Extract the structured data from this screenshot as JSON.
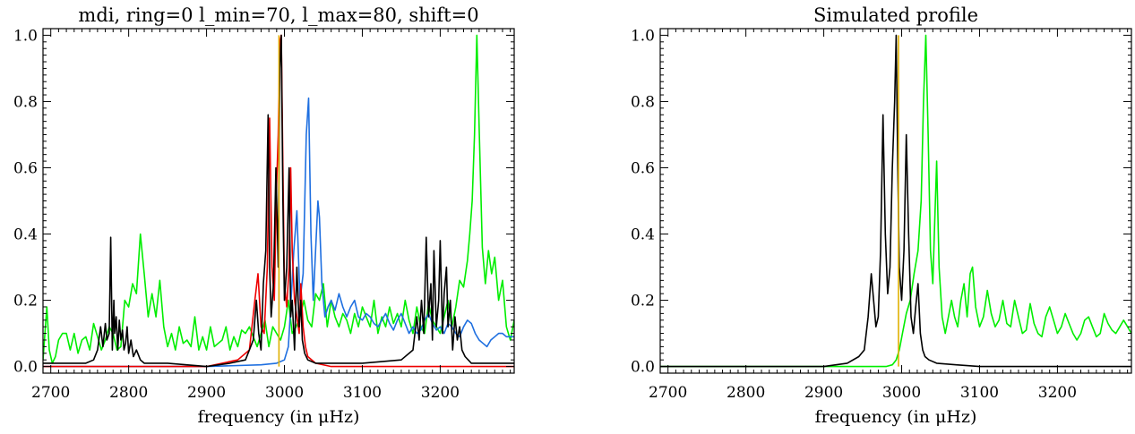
{
  "chart_data": [
    {
      "type": "line",
      "title": "mdi, ring=0 l_min=70, l_max=80, shift=0",
      "xlabel": "frequency (in μHz)",
      "ylabel": "",
      "xlim": [
        2690,
        3295
      ],
      "ylim": [
        -0.02,
        1.02
      ],
      "grid": false,
      "x_ticks": [
        2700,
        2800,
        2900,
        3000,
        3100,
        3200
      ],
      "x_tick_labels": [
        "2700",
        "2800",
        "2900",
        "3000",
        "3100",
        "3200"
      ],
      "y_ticks": [
        0.0,
        0.2,
        0.4,
        0.6,
        0.8,
        1.0
      ],
      "y_tick_labels": [
        "0.0",
        "0.2",
        "0.4",
        "0.6",
        "0.8",
        "1.0"
      ],
      "series": [
        {
          "color": "#00ee00",
          "x": [
            2690,
            2695,
            2698,
            2702,
            2706,
            2710,
            2715,
            2720,
            2725,
            2730,
            2735,
            2740,
            2745,
            2750,
            2755,
            2760,
            2765,
            2770,
            2775,
            2780,
            2785,
            2790,
            2795,
            2800,
            2805,
            2810,
            2815,
            2820,
            2825,
            2830,
            2835,
            2840,
            2845,
            2850,
            2855,
            2860,
            2865,
            2870,
            2875,
            2880,
            2885,
            2890,
            2895,
            2900,
            2905,
            2910,
            2915,
            2920,
            2925,
            2930,
            2935,
            2940,
            2945,
            2950,
            2955,
            2960,
            2965,
            2970,
            2975,
            2980,
            2985,
            2990,
            2995,
            3000,
            3005,
            3010,
            3015,
            3020,
            3025,
            3030,
            3035,
            3040,
            3045,
            3050,
            3055,
            3060,
            3065,
            3070,
            3075,
            3080,
            3085,
            3090,
            3095,
            3100,
            3105,
            3110,
            3115,
            3120,
            3125,
            3130,
            3135,
            3140,
            3145,
            3150,
            3155,
            3160,
            3165,
            3170,
            3175,
            3180,
            3185,
            3190,
            3195,
            3200,
            3205,
            3210,
            3215,
            3220,
            3225,
            3230,
            3235,
            3238,
            3241,
            3244,
            3247,
            3250,
            3254,
            3258,
            3262,
            3266,
            3270,
            3275,
            3280,
            3285,
            3290,
            3295
          ],
          "y": [
            0.02,
            0.18,
            0.05,
            0.01,
            0.03,
            0.08,
            0.1,
            0.1,
            0.05,
            0.1,
            0.04,
            0.08,
            0.09,
            0.05,
            0.13,
            0.09,
            0.05,
            0.08,
            0.12,
            0.1,
            0.05,
            0.06,
            0.2,
            0.18,
            0.25,
            0.22,
            0.4,
            0.28,
            0.15,
            0.22,
            0.15,
            0.26,
            0.12,
            0.06,
            0.1,
            0.05,
            0.12,
            0.07,
            0.08,
            0.06,
            0.15,
            0.05,
            0.09,
            0.05,
            0.12,
            0.06,
            0.07,
            0.08,
            0.12,
            0.05,
            0.09,
            0.06,
            0.11,
            0.1,
            0.12,
            0.09,
            0.06,
            0.1,
            0.14,
            0.06,
            0.12,
            0.1,
            0.08,
            0.12,
            0.2,
            0.1,
            0.12,
            0.15,
            0.2,
            0.14,
            0.12,
            0.22,
            0.2,
            0.25,
            0.12,
            0.2,
            0.15,
            0.12,
            0.16,
            0.14,
            0.1,
            0.16,
            0.12,
            0.18,
            0.15,
            0.12,
            0.2,
            0.1,
            0.15,
            0.12,
            0.18,
            0.13,
            0.16,
            0.12,
            0.2,
            0.14,
            0.1,
            0.18,
            0.12,
            0.1,
            0.19,
            0.14,
            0.12,
            0.1,
            0.15,
            0.2,
            0.12,
            0.18,
            0.26,
            0.24,
            0.32,
            0.4,
            0.5,
            0.7,
            1.0,
            0.72,
            0.36,
            0.25,
            0.35,
            0.28,
            0.33,
            0.2,
            0.26,
            0.12,
            0.08,
            0.14
          ]
        },
        {
          "color": "#1e6fe0",
          "x": [
            2690,
            2900,
            2970,
            2990,
            3000,
            3005,
            3008,
            3012,
            3016,
            3020,
            3024,
            3028,
            3031,
            3034,
            3037,
            3040,
            3043,
            3045,
            3048,
            3052,
            3056,
            3060,
            3065,
            3070,
            3075,
            3080,
            3085,
            3090,
            3095,
            3100,
            3105,
            3110,
            3115,
            3120,
            3125,
            3130,
            3135,
            3140,
            3145,
            3150,
            3155,
            3160,
            3165,
            3170,
            3175,
            3180,
            3185,
            3190,
            3195,
            3200,
            3205,
            3210,
            3215,
            3220,
            3225,
            3230,
            3235,
            3240,
            3245,
            3250,
            3255,
            3260,
            3265,
            3270,
            3275,
            3280,
            3285,
            3290,
            3295
          ],
          "y": [
            0.0,
            0.0,
            0.005,
            0.01,
            0.02,
            0.06,
            0.18,
            0.35,
            0.47,
            0.2,
            0.28,
            0.7,
            0.81,
            0.4,
            0.2,
            0.35,
            0.5,
            0.45,
            0.25,
            0.15,
            0.18,
            0.2,
            0.17,
            0.22,
            0.18,
            0.15,
            0.18,
            0.2,
            0.15,
            0.14,
            0.16,
            0.15,
            0.13,
            0.12,
            0.14,
            0.16,
            0.13,
            0.11,
            0.14,
            0.16,
            0.13,
            0.1,
            0.12,
            0.1,
            0.11,
            0.14,
            0.16,
            0.13,
            0.11,
            0.12,
            0.1,
            0.13,
            0.12,
            0.1,
            0.09,
            0.12,
            0.14,
            0.13,
            0.1,
            0.08,
            0.07,
            0.06,
            0.08,
            0.09,
            0.1,
            0.1,
            0.09,
            0.09,
            0.09
          ]
        },
        {
          "color": "#ee0000",
          "x": [
            2690,
            2900,
            2940,
            2955,
            2962,
            2966,
            2970,
            2974,
            2978,
            2981,
            2984,
            2987,
            2990,
            2992,
            2994,
            2996,
            2998,
            3000,
            3003,
            3006,
            3008,
            3010,
            3013,
            3016,
            3019,
            3021,
            3024,
            3027,
            3030,
            3040,
            3060,
            3100,
            3295
          ],
          "y": [
            0.0,
            0.0,
            0.02,
            0.05,
            0.2,
            0.28,
            0.12,
            0.1,
            0.3,
            0.75,
            0.3,
            0.2,
            0.55,
            0.7,
            0.98,
            1.0,
            0.6,
            0.25,
            0.18,
            0.3,
            0.6,
            0.35,
            0.2,
            0.15,
            0.1,
            0.25,
            0.12,
            0.06,
            0.03,
            0.01,
            0.0,
            0.0,
            0.0
          ]
        },
        {
          "color": "#000000",
          "x": [
            2690,
            2745,
            2755,
            2760,
            2764,
            2767,
            2770,
            2772,
            2775,
            2777,
            2779,
            2781,
            2782,
            2784,
            2786,
            2788,
            2790,
            2792,
            2794,
            2796,
            2798,
            2800,
            2803,
            2806,
            2810,
            2815,
            2820,
            2850,
            2900,
            2930,
            2950,
            2955,
            2960,
            2964,
            2967,
            2970,
            2973,
            2976,
            2979,
            2981,
            2983,
            2986,
            2989,
            2992,
            2994,
            2996,
            2998,
            3000,
            3003,
            3006,
            3008,
            3010,
            3013,
            3016,
            3019,
            3021,
            3023,
            3026,
            3030,
            3040,
            3060,
            3100,
            3150,
            3165,
            3170,
            3173,
            3176,
            3179,
            3182,
            3185,
            3188,
            3190,
            3192,
            3195,
            3198,
            3200,
            3203,
            3205,
            3208,
            3210,
            3213,
            3216,
            3219,
            3222,
            3225,
            3228,
            3232,
            3240,
            3295
          ],
          "y": [
            0.01,
            0.01,
            0.02,
            0.05,
            0.12,
            0.06,
            0.13,
            0.08,
            0.1,
            0.39,
            0.05,
            0.2,
            0.1,
            0.15,
            0.05,
            0.14,
            0.08,
            0.11,
            0.05,
            0.07,
            0.12,
            0.04,
            0.08,
            0.03,
            0.05,
            0.02,
            0.01,
            0.01,
            0.0,
            0.01,
            0.02,
            0.05,
            0.08,
            0.2,
            0.1,
            0.05,
            0.25,
            0.35,
            0.76,
            0.3,
            0.15,
            0.25,
            0.6,
            0.3,
            0.9,
            1.0,
            0.5,
            0.2,
            0.3,
            0.6,
            0.15,
            0.2,
            0.05,
            0.3,
            0.12,
            0.2,
            0.08,
            0.04,
            0.02,
            0.01,
            0.01,
            0.01,
            0.02,
            0.05,
            0.15,
            0.08,
            0.2,
            0.1,
            0.39,
            0.15,
            0.25,
            0.08,
            0.35,
            0.12,
            0.2,
            0.38,
            0.1,
            0.22,
            0.3,
            0.12,
            0.2,
            0.05,
            0.15,
            0.08,
            0.12,
            0.05,
            0.03,
            0.01,
            0.01
          ]
        },
        {
          "color": "#e0b000",
          "x": [
            2993,
            2993
          ],
          "y": [
            0.0,
            1.0
          ]
        }
      ]
    },
    {
      "type": "line",
      "title": "Simulated profile",
      "xlabel": "frequency (in μHz)",
      "ylabel": "",
      "xlim": [
        2690,
        3295
      ],
      "ylim": [
        -0.02,
        1.02
      ],
      "grid": false,
      "x_ticks": [
        2700,
        2800,
        2900,
        3000,
        3100,
        3200
      ],
      "x_tick_labels": [
        "2700",
        "2800",
        "2900",
        "3000",
        "3100",
        "3200"
      ],
      "y_ticks": [
        0.0,
        0.2,
        0.4,
        0.6,
        0.8,
        1.0
      ],
      "y_tick_labels": [
        "0.0",
        "0.2",
        "0.4",
        "0.6",
        "0.8",
        "1.0"
      ],
      "series": [
        {
          "color": "#00ee00",
          "x": [
            2690,
            2980,
            2988,
            2993,
            2997,
            3001,
            3006,
            3011,
            3016,
            3021,
            3025,
            3028,
            3031,
            3034,
            3037,
            3040,
            3042,
            3045,
            3048,
            3052,
            3056,
            3060,
            3064,
            3068,
            3072,
            3076,
            3080,
            3084,
            3088,
            3091,
            3095,
            3100,
            3105,
            3110,
            3115,
            3120,
            3125,
            3130,
            3135,
            3140,
            3145,
            3150,
            3155,
            3160,
            3165,
            3170,
            3175,
            3180,
            3185,
            3190,
            3195,
            3200,
            3205,
            3210,
            3215,
            3220,
            3225,
            3230,
            3235,
            3240,
            3245,
            3250,
            3255,
            3260,
            3265,
            3270,
            3275,
            3280,
            3285,
            3290,
            3295
          ],
          "y": [
            0.0,
            0.0,
            0.005,
            0.02,
            0.05,
            0.1,
            0.16,
            0.2,
            0.28,
            0.35,
            0.5,
            0.8,
            1.0,
            0.7,
            0.35,
            0.25,
            0.4,
            0.62,
            0.3,
            0.15,
            0.1,
            0.15,
            0.2,
            0.15,
            0.12,
            0.2,
            0.25,
            0.15,
            0.28,
            0.3,
            0.18,
            0.12,
            0.15,
            0.23,
            0.16,
            0.12,
            0.14,
            0.2,
            0.13,
            0.12,
            0.2,
            0.15,
            0.1,
            0.11,
            0.19,
            0.13,
            0.1,
            0.09,
            0.15,
            0.18,
            0.14,
            0.1,
            0.12,
            0.16,
            0.13,
            0.1,
            0.08,
            0.1,
            0.14,
            0.15,
            0.12,
            0.09,
            0.1,
            0.16,
            0.13,
            0.11,
            0.1,
            0.12,
            0.14,
            0.12,
            0.1
          ]
        },
        {
          "color": "#000000",
          "x": [
            2690,
            2900,
            2930,
            2945,
            2952,
            2957,
            2961,
            2964,
            2967,
            2970,
            2973,
            2976,
            2979,
            2982,
            2985,
            2988,
            2991,
            2993,
            2995,
            2997,
            3000,
            3003,
            3006,
            3009,
            3012,
            3015,
            3018,
            3021,
            3024,
            3027,
            3030,
            3035,
            3045,
            3070,
            3100,
            3295
          ],
          "y": [
            0.0,
            0.0,
            0.01,
            0.03,
            0.05,
            0.15,
            0.28,
            0.2,
            0.12,
            0.15,
            0.35,
            0.76,
            0.4,
            0.22,
            0.3,
            0.6,
            0.8,
            1.0,
            0.6,
            0.3,
            0.2,
            0.35,
            0.7,
            0.4,
            0.15,
            0.1,
            0.18,
            0.25,
            0.1,
            0.05,
            0.03,
            0.02,
            0.01,
            0.005,
            0.0,
            0.0
          ]
        },
        {
          "color": "#e0b000",
          "x": [
            2996,
            2996
          ],
          "y": [
            0.0,
            1.0
          ]
        }
      ]
    }
  ]
}
